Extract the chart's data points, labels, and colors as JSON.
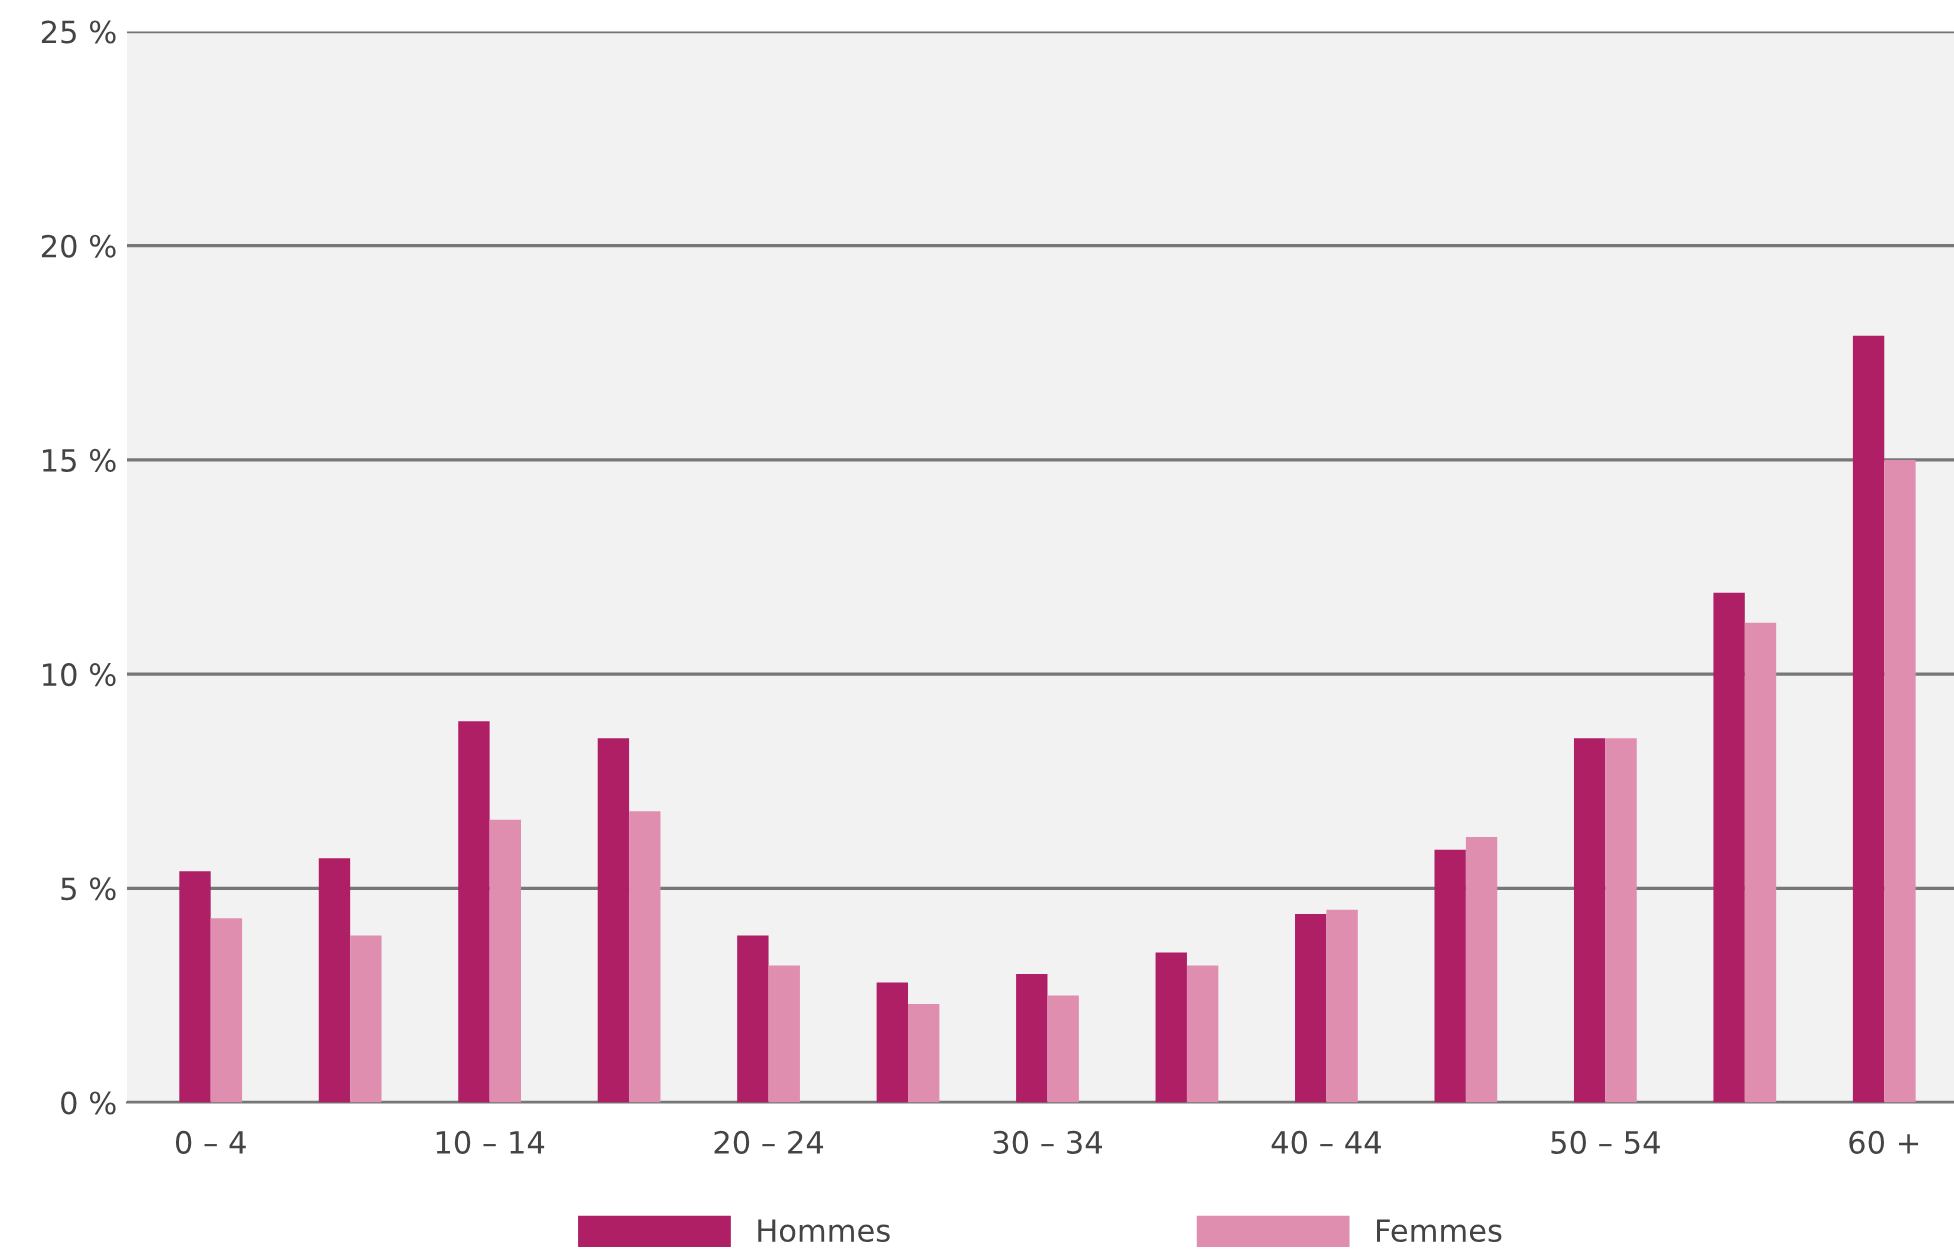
{
  "chart_data": {
    "type": "bar",
    "categories": [
      "0 – 4",
      null,
      "10 – 14",
      null,
      "20 – 24",
      null,
      "30 – 34",
      null,
      "40 – 44",
      null,
      "50 – 54",
      null,
      "60 +"
    ],
    "series": [
      {
        "name": "Hommes",
        "color": "#ae1f66",
        "values": [
          5.4,
          5.7,
          8.9,
          8.5,
          3.9,
          2.8,
          3.0,
          3.5,
          4.4,
          5.9,
          8.5,
          11.9,
          17.9
        ]
      },
      {
        "name": "Femmes",
        "color": "#e08eb0",
        "values": [
          4.3,
          3.9,
          6.6,
          6.8,
          3.2,
          2.3,
          2.5,
          3.2,
          4.5,
          6.2,
          8.5,
          11.2,
          15.0
        ]
      }
    ],
    "ylim": [
      0,
      25
    ],
    "yticks": [
      {
        "value": 0,
        "label": "0 %"
      },
      {
        "value": 5,
        "label": "5 %"
      },
      {
        "value": 10,
        "label": "10 %"
      },
      {
        "value": 15,
        "label": "15 %"
      },
      {
        "value": 20,
        "label": "20 %"
      },
      {
        "value": 25,
        "label": "25 %"
      }
    ],
    "grid": "y",
    "legend": "bottom"
  }
}
